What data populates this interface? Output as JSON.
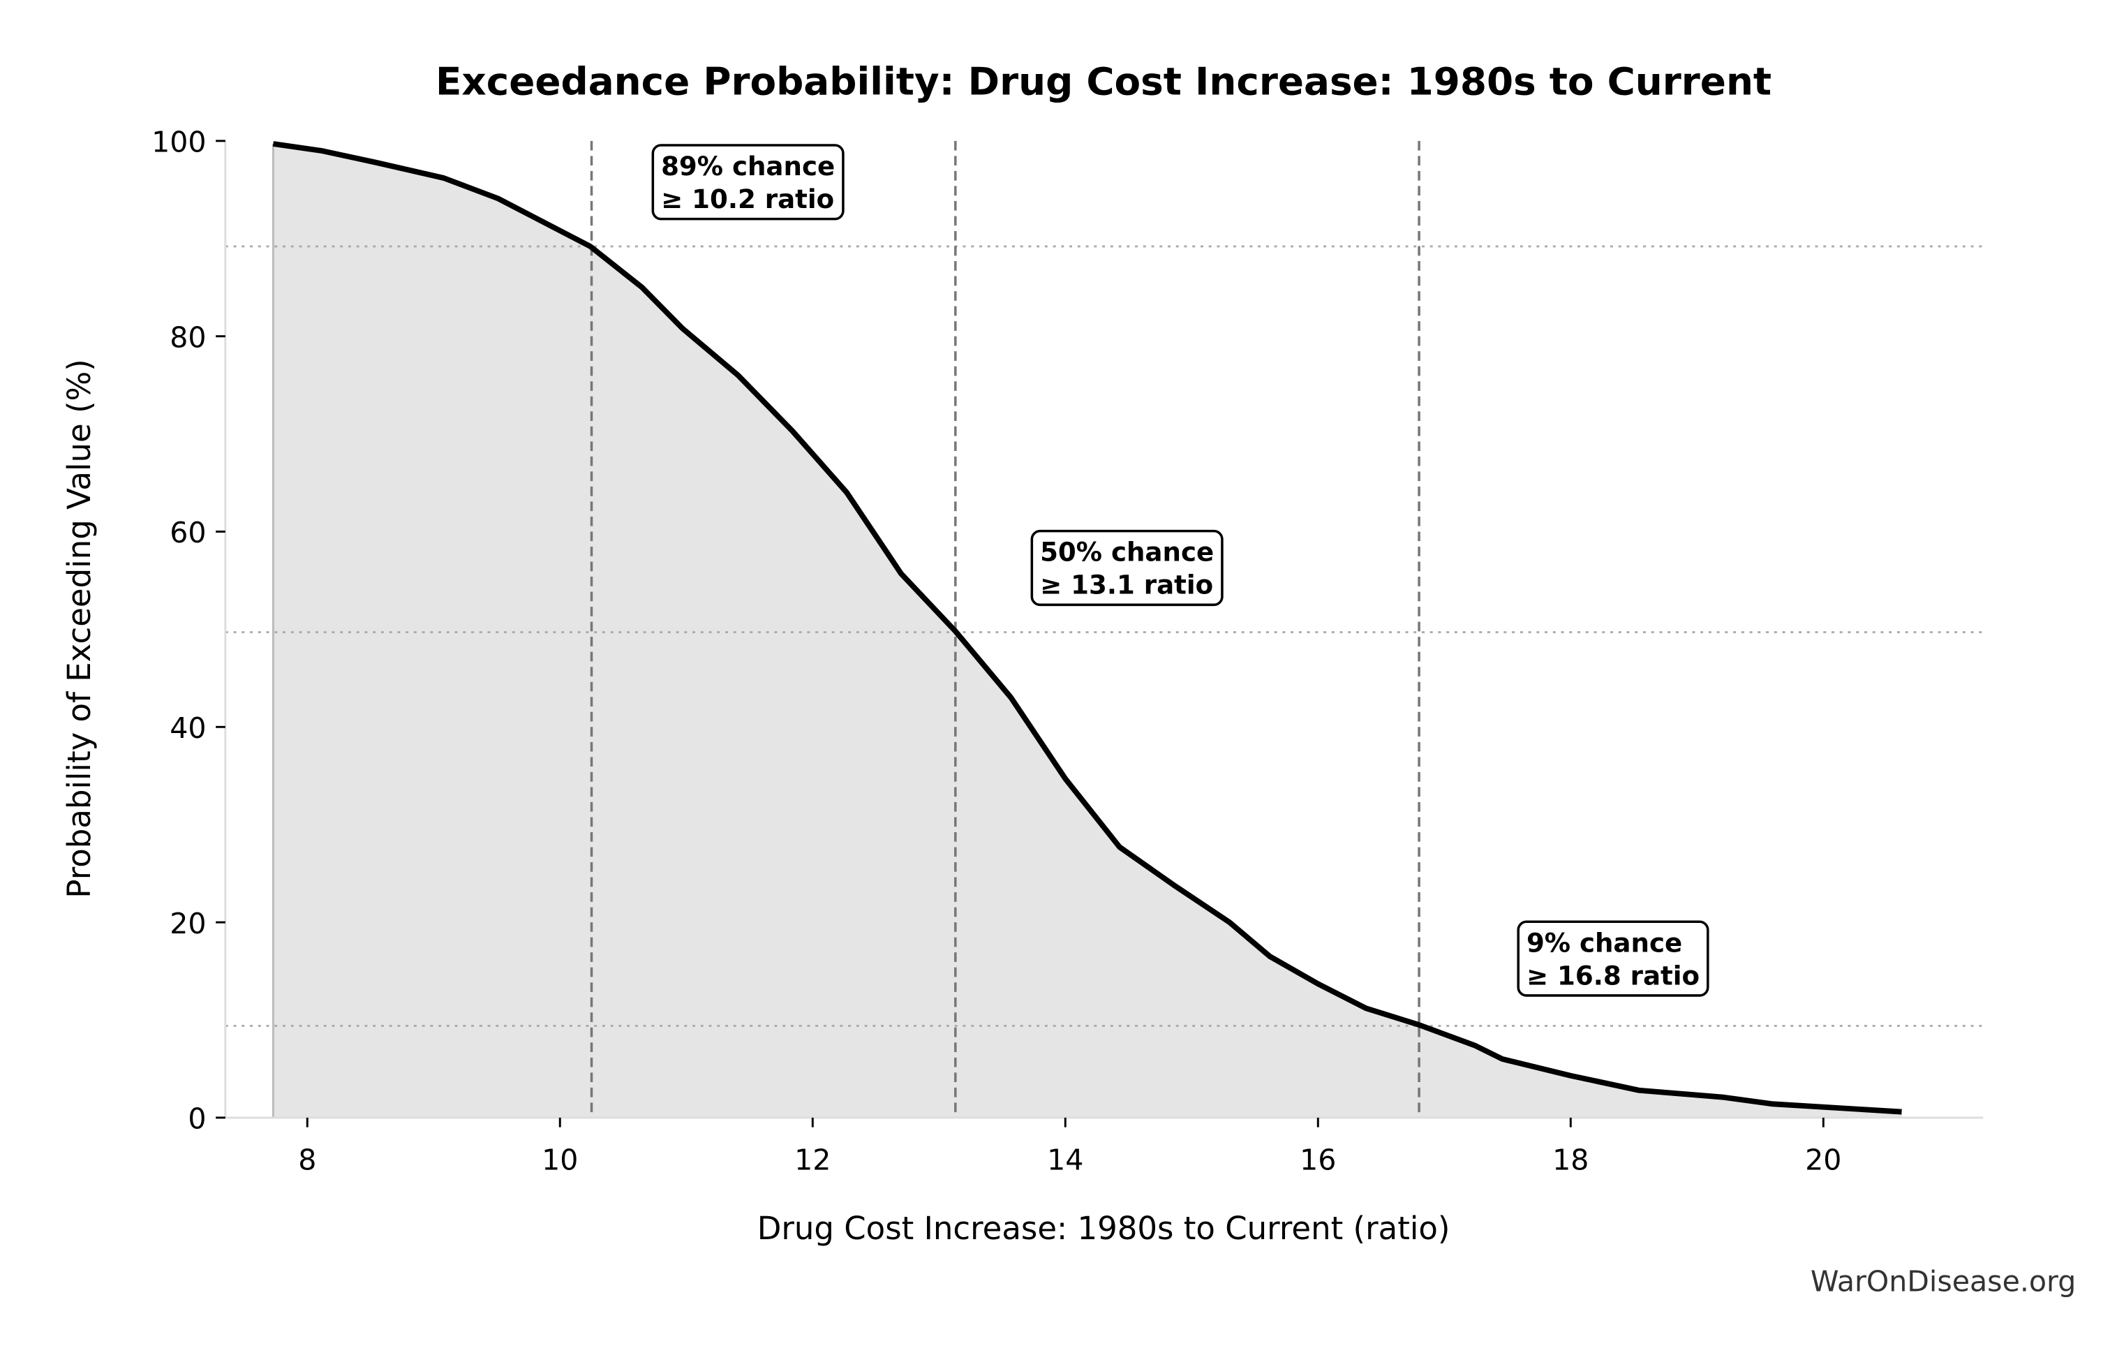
{
  "chart_data": {
    "type": "area",
    "title": "Exceedance Probability: Drug Cost Increase: 1980s to Current",
    "xlabel": "Drug Cost Increase: 1980s to Current (ratio)",
    "ylabel": "Probability of Exceeding Value (%)",
    "xlim": [
      7.4,
      21.3
    ],
    "ylim": [
      0,
      100
    ],
    "xticks": [
      8,
      10,
      12,
      14,
      16,
      18,
      20
    ],
    "yticks": [
      0,
      20,
      40,
      60,
      80,
      100
    ],
    "grid": false,
    "x": [
      7.73,
      8.11,
      8.54,
      9.08,
      9.51,
      10.24,
      10.65,
      10.97,
      11.41,
      11.84,
      12.27,
      12.7,
      13.13,
      13.57,
      14.0,
      14.43,
      14.86,
      15.3,
      15.62,
      16.0,
      16.38,
      16.8,
      17.24,
      17.46,
      18.0,
      18.54,
      19.2,
      19.6,
      20.62
    ],
    "y": [
      99.7,
      99.0,
      97.8,
      96.2,
      94.1,
      89.2,
      85.0,
      80.8,
      76.0,
      70.3,
      64.0,
      55.7,
      49.8,
      43.0,
      34.7,
      27.7,
      23.8,
      20.0,
      16.5,
      13.7,
      11.2,
      9.5,
      7.4,
      6.0,
      4.3,
      2.8,
      2.1,
      1.4,
      0.6
    ],
    "line_color": "#000000",
    "fill_color": "#e5e5e5",
    "markers": [
      {
        "x": 10.25,
        "y": 89.2,
        "label_line1": "89% chance",
        "label_line2": "≥ 10.2 ratio",
        "label_x": 10.8,
        "label_y": 99
      },
      {
        "x": 13.13,
        "y": 49.7,
        "label_line1": "50% chance",
        "label_line2": "≥ 13.1 ratio",
        "label_x": 13.8,
        "label_y": 59.5
      },
      {
        "x": 16.8,
        "y": 9.4,
        "label_line1": "9% chance",
        "label_line2": "≥ 16.8 ratio",
        "label_x": 17.65,
        "label_y": 19.5
      }
    ]
  },
  "watermark": "WarOnDisease.org"
}
